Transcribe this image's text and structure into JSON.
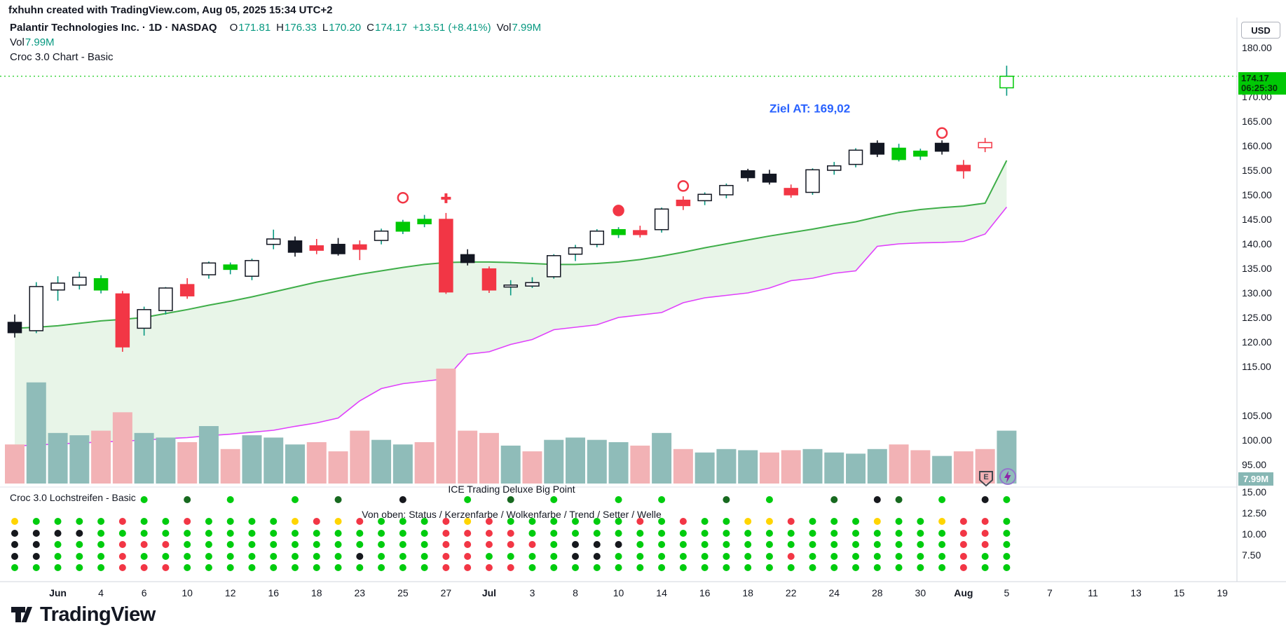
{
  "header": {
    "watermark": "fxhuhn created with TradingView.com, Aug 05, 2025 15:34 UTC+2"
  },
  "legend": {
    "title": "Palantir Technologies Inc. · 1D · NASDAQ",
    "o_label": "O",
    "o_value": "171.81",
    "h_label": "H",
    "h_value": "176.33",
    "l_label": "L",
    "l_value": "170.20",
    "c_label": "C",
    "c_value": "174.17",
    "change": "+13.51 (+8.41%)",
    "vol_label": "Vol",
    "vol_value": "7.99M",
    "vol_row_label": "Vol",
    "vol_row_value": "7.99M",
    "chart_indicator": "Croc 3.0 Chart - Basic"
  },
  "price_scale": {
    "currency": "USD",
    "last_price": "174.17",
    "countdown": "06:25:30",
    "volume_label": "7.99M",
    "badge_letter": "E"
  },
  "indicator_pane": {
    "title": "Croc 3.0 Lochstreifen - Basic",
    "subtitle": "ICE Trading Deluxe Big Point",
    "legend": "Von oben: Status / Kerzenfarbe / Wolkenfarbe / Trend / Setter / Welle"
  },
  "footer": {
    "brand": "TradingView"
  },
  "chart_data": {
    "type": "candlestick",
    "title": "Palantir Technologies Inc.",
    "interval": "1D",
    "exchange": "NASDAQ",
    "last": {
      "open": 171.81,
      "high": 176.33,
      "low": 170.2,
      "close": 174.17,
      "change": 13.51,
      "change_pct": 8.41,
      "volume": "7.99M"
    },
    "current_price": 174.17,
    "price_axis": {
      "ticks": [
        180,
        170,
        165,
        160,
        155,
        150,
        145,
        140,
        135,
        130,
        125,
        120,
        115,
        105,
        100,
        95
      ]
    },
    "indicator_axis": {
      "ticks": [
        15,
        12.5,
        10,
        7.5
      ]
    },
    "time_axis": [
      {
        "label": "Jun",
        "d": 2,
        "major": true
      },
      {
        "label": "4",
        "d": 4
      },
      {
        "label": "6",
        "d": 6
      },
      {
        "label": "10",
        "d": 8
      },
      {
        "label": "12",
        "d": 10
      },
      {
        "label": "16",
        "d": 12
      },
      {
        "label": "18",
        "d": 14
      },
      {
        "label": "23",
        "d": 16
      },
      {
        "label": "25",
        "d": 18
      },
      {
        "label": "27",
        "d": 20
      },
      {
        "label": "Jul",
        "d": 22,
        "major": true
      },
      {
        "label": "3",
        "d": 24
      },
      {
        "label": "8",
        "d": 26
      },
      {
        "label": "10",
        "d": 28
      },
      {
        "label": "14",
        "d": 30
      },
      {
        "label": "16",
        "d": 32
      },
      {
        "label": "18",
        "d": 34
      },
      {
        "label": "22",
        "d": 36
      },
      {
        "label": "24",
        "d": 38
      },
      {
        "label": "28",
        "d": 40
      },
      {
        "label": "30",
        "d": 42
      },
      {
        "label": "Aug",
        "d": 44,
        "major": true
      },
      {
        "label": "5",
        "d": 46
      },
      {
        "label": "7",
        "d": 48
      },
      {
        "label": "11",
        "d": 50
      },
      {
        "label": "13",
        "d": 52
      },
      {
        "label": "15",
        "d": 54
      },
      {
        "label": "19",
        "d": 56
      }
    ],
    "candle_format": [
      "open",
      "high",
      "low",
      "close",
      "color",
      "volume_rel",
      "volume_side"
    ],
    "candles": [
      [
        124.0,
        125.6,
        120.9,
        121.9,
        "black",
        34,
        "d"
      ],
      [
        122.3,
        132.2,
        121.8,
        131.3,
        "hollow",
        88,
        "u"
      ],
      [
        130.6,
        133.4,
        128.4,
        132.0,
        "hollow",
        44,
        "u"
      ],
      [
        131.6,
        134.3,
        130.7,
        133.2,
        "hollow",
        42,
        "u"
      ],
      [
        130.6,
        133.6,
        129.9,
        132.9,
        "green",
        46,
        "d"
      ],
      [
        129.8,
        130.4,
        118.0,
        119.0,
        "red",
        62,
        "d"
      ],
      [
        122.8,
        127.2,
        121.3,
        126.6,
        "hollow",
        44,
        "u"
      ],
      [
        126.4,
        131.2,
        125.6,
        131.0,
        "hollow",
        40,
        "u"
      ],
      [
        131.7,
        133.0,
        128.8,
        129.4,
        "red",
        36,
        "d"
      ],
      [
        133.7,
        136.4,
        132.9,
        136.1,
        "hollow",
        50,
        "u"
      ],
      [
        134.8,
        136.2,
        133.8,
        135.7,
        "green",
        30,
        "d"
      ],
      [
        133.4,
        137.0,
        132.6,
        136.6,
        "hollow",
        42,
        "u"
      ],
      [
        139.9,
        142.9,
        138.9,
        141.0,
        "hollow",
        40,
        "u"
      ],
      [
        140.6,
        141.5,
        137.4,
        138.3,
        "black",
        34,
        "u"
      ],
      [
        139.6,
        141.0,
        137.9,
        138.7,
        "red",
        36,
        "d"
      ],
      [
        139.9,
        141.2,
        137.6,
        138.0,
        "black",
        28,
        "d"
      ],
      [
        139.8,
        140.7,
        136.7,
        138.9,
        "red",
        46,
        "d"
      ],
      [
        140.7,
        143.1,
        139.9,
        142.6,
        "hollow",
        38,
        "u"
      ],
      [
        142.6,
        144.9,
        142.0,
        144.4,
        "green",
        34,
        "u"
      ],
      [
        144.1,
        145.9,
        143.4,
        145.0,
        "green",
        36,
        "d"
      ],
      [
        145.0,
        146.3,
        129.8,
        130.2,
        "red",
        100,
        "d"
      ],
      [
        137.8,
        138.9,
        135.6,
        136.2,
        "black",
        46,
        "d"
      ],
      [
        134.9,
        135.4,
        130.0,
        130.6,
        "red",
        44,
        "d"
      ],
      [
        131.2,
        132.6,
        129.5,
        131.6,
        "hollow",
        33,
        "u"
      ],
      [
        132.1,
        133.2,
        131.0,
        131.4,
        "hollow",
        28,
        "d"
      ],
      [
        133.3,
        137.9,
        132.9,
        137.6,
        "hollow",
        38,
        "u"
      ],
      [
        137.9,
        139.8,
        136.5,
        139.2,
        "hollow",
        40,
        "u"
      ],
      [
        139.9,
        143.0,
        139.3,
        142.6,
        "hollow",
        38,
        "u"
      ],
      [
        141.9,
        143.4,
        141.2,
        142.9,
        "green",
        36,
        "u"
      ],
      [
        142.7,
        143.7,
        141.3,
        141.9,
        "red",
        33,
        "d"
      ],
      [
        142.9,
        147.4,
        142.3,
        147.1,
        "hollow",
        44,
        "u"
      ],
      [
        148.9,
        149.7,
        146.9,
        147.8,
        "red",
        30,
        "d"
      ],
      [
        148.8,
        150.5,
        147.9,
        150.1,
        "hollow",
        27,
        "u"
      ],
      [
        150.0,
        152.3,
        149.3,
        151.9,
        "hollow",
        30,
        "u"
      ],
      [
        153.5,
        155.3,
        152.7,
        154.9,
        "black",
        29,
        "u"
      ],
      [
        154.2,
        155.1,
        152.1,
        152.6,
        "black",
        27,
        "d"
      ],
      [
        151.3,
        152.1,
        149.4,
        150.0,
        "red",
        29,
        "d"
      ],
      [
        150.5,
        155.4,
        150.0,
        155.1,
        "hollow",
        30,
        "u"
      ],
      [
        155.0,
        156.7,
        154.1,
        155.9,
        "hollow",
        27,
        "u"
      ],
      [
        156.2,
        159.5,
        155.6,
        159.1,
        "hollow",
        26,
        "u"
      ],
      [
        158.3,
        161.1,
        157.7,
        160.5,
        "black",
        30,
        "u"
      ],
      [
        159.5,
        160.4,
        156.8,
        157.2,
        "green",
        34,
        "d"
      ],
      [
        157.9,
        159.4,
        157.1,
        158.9,
        "green",
        29,
        "d"
      ],
      [
        158.9,
        161.1,
        158.2,
        160.5,
        "black",
        24,
        "u"
      ],
      [
        156.0,
        157.1,
        153.3,
        154.9,
        "red",
        28,
        "d"
      ],
      [
        159.6,
        161.6,
        158.7,
        160.66,
        "hollow-red",
        30,
        "d"
      ],
      [
        171.81,
        176.33,
        170.2,
        174.17,
        "hollow-green",
        46,
        "u"
      ]
    ],
    "cloud": {
      "upper": [
        122.8,
        123.0,
        123.3,
        123.8,
        124.3,
        124.6,
        125.0,
        125.8,
        126.6,
        127.5,
        128.3,
        129.2,
        130.2,
        131.2,
        132.2,
        133.0,
        133.8,
        134.5,
        135.2,
        135.8,
        136.2,
        136.3,
        136.3,
        136.2,
        136.0,
        135.8,
        135.8,
        136.0,
        136.3,
        136.8,
        137.5,
        138.3,
        139.2,
        140.0,
        140.8,
        141.6,
        142.3,
        143.0,
        143.8,
        144.5,
        145.5,
        146.4,
        147.0,
        147.4,
        147.7,
        148.3,
        157.0
      ],
      "lower": [
        98.8,
        99.0,
        99.2,
        99.4,
        99.6,
        99.8,
        100.0,
        100.3,
        100.5,
        100.9,
        101.2,
        101.6,
        102.0,
        102.8,
        103.5,
        104.5,
        108.0,
        110.5,
        111.5,
        112.0,
        112.5,
        117.5,
        118.0,
        119.5,
        120.5,
        122.5,
        123.0,
        123.5,
        125.0,
        125.5,
        126.0,
        128.0,
        129.0,
        129.5,
        130.0,
        131.0,
        132.5,
        133.0,
        134.0,
        134.5,
        139.5,
        140.0,
        140.2,
        140.3,
        140.5,
        142.0,
        147.5
      ]
    },
    "markers": [
      {
        "d": 18,
        "p": 149.4,
        "t": "circle-open"
      },
      {
        "d": 20,
        "p": 149.3,
        "t": "cross"
      },
      {
        "d": 28,
        "p": 146.8,
        "t": "circle-filled"
      },
      {
        "d": 31,
        "p": 151.8,
        "t": "circle-open"
      },
      {
        "d": 43,
        "p": 162.6,
        "t": "circle-open"
      }
    ],
    "annotations": [
      {
        "text": "Ziel AT: 169,02",
        "d": 35,
        "p": 166.8,
        "color": "#2962ff"
      }
    ],
    "dot_rows": {
      "labels": [
        "Status",
        "Kerzenfarbe",
        "Wolkenfarbe",
        "Trend",
        "Setter",
        "Welle"
      ],
      "rows": [
        "......g.G.g..g.G..k..g.G.g..g.g..G.g..G.kG.g.kg",
        "yggggrggrggggyryrgggryrggggggrgrggyyrgggyggyrrg",
        "kkkkggggggggggggggggrrrrggggggggggggggggggggrrg",
        "kkgggrrrggggggggggggrrrrrgkkkgggggggggggggggrrg",
        "kkgggrggggggggggkgggrrggggkkggggggggrgggggggrgg",
        "gggggrrrggggggggggggrrrrggggggggggggggggggggrgg"
      ]
    },
    "colors": {
      "up": "#089981",
      "down": "#f23645",
      "candle_green": "#00c805",
      "candle_black": "#131722",
      "vol_up": "#8fbcb9",
      "vol_down": "#f2b2b5",
      "cloud_fill": "rgba(76,175,80,0.13)",
      "cloud_upper": "#3fae49",
      "cloud_lower": "#e040fb",
      "accent_blue": "#2962ff",
      "label_green": "#00c805",
      "dot_palette": {
        "g": "#00cc0e",
        "G": "#17691f",
        "k": "#16181d",
        "r": "#f23645",
        "y": "#ffd500"
      }
    }
  }
}
